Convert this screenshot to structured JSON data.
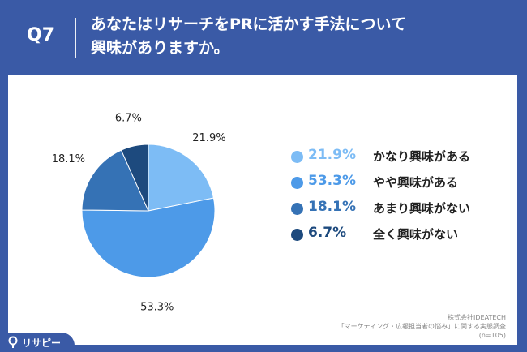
{
  "header": {
    "question_number": "Q7",
    "title_line1": "あなたはリサーチをPRに活かす手法について",
    "title_line2": "興味がありますか。"
  },
  "chart_data": {
    "type": "pie",
    "categories": [
      "かなり興味がある",
      "やや興味がある",
      "あまり興味がない",
      "全く興味がない"
    ],
    "values": [
      21.9,
      53.3,
      18.1,
      6.7
    ],
    "value_labels": [
      "21.9%",
      "53.3%",
      "18.1%",
      "6.7%"
    ],
    "colors": [
      "#7dbcf5",
      "#4d9ae8",
      "#3572b5",
      "#1d4a7e"
    ],
    "start_angle_deg": 0,
    "direction": "clockwise",
    "legend_position": "right"
  },
  "source": {
    "line1": "株式会社IDEATECH",
    "line2": "「マーケティング・広報担当者の悩み」に関する実態調査",
    "line3": "(n=105)"
  },
  "brand": {
    "name": "リサピー",
    "icon": "research-magnifier-icon"
  }
}
